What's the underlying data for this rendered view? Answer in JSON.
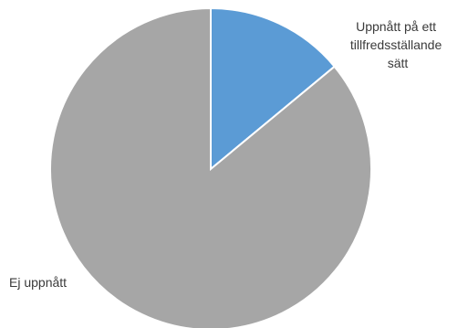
{
  "chart_data": {
    "type": "pie",
    "title": "",
    "slices": [
      {
        "label_lines": [
          "Uppnått på ett",
          "tillfredsställande",
          "sätt"
        ],
        "value": 14,
        "color": "#5b9bd5"
      },
      {
        "label_lines": [
          "Ej uppnått"
        ],
        "value": 86,
        "color": "#a6a6a6"
      }
    ],
    "start_angle_deg": 0,
    "direction": "clockwise",
    "legend": "none",
    "data_labels": "category-name"
  }
}
